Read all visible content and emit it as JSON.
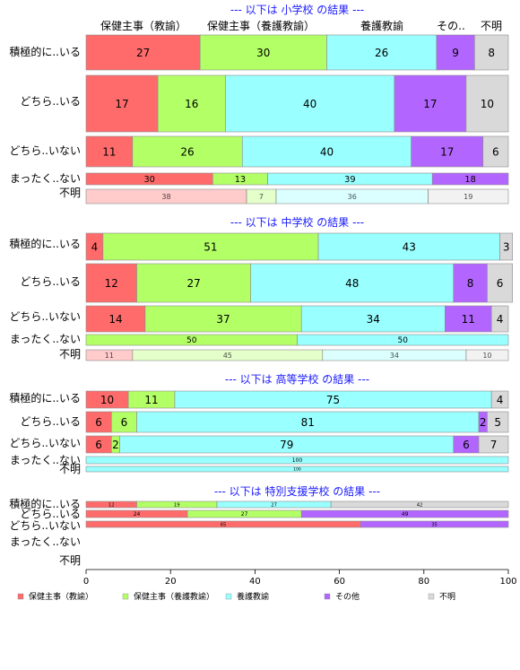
{
  "chart_data": {
    "type": "bar",
    "orientation": "horizontal",
    "stacked": "percent",
    "xlim": [
      0,
      100
    ],
    "xticks": [
      0,
      20,
      40,
      60,
      80,
      100
    ],
    "series_names": [
      "保健主事（教諭）",
      "保健主事（養護教諭）",
      "養護教諭",
      "その他",
      "不明"
    ],
    "colors": [
      "#ff6b6b",
      "#b3ff66",
      "#99ffff",
      "#b366ff",
      "#d9d9d9"
    ],
    "column_headers": [
      "保健主事（教諭）",
      "保健主事（養護教諭）",
      "養護教諭",
      "その..",
      "不明"
    ],
    "panels": [
      {
        "title": "--- 以下は 小学校 の結果 ---",
        "rows": [
          {
            "label": "積極的に..いる",
            "values": [
              27,
              30,
              26,
              9,
              8
            ]
          },
          {
            "label": "どちら..いる",
            "values": [
              17,
              16,
              40,
              17,
              10
            ]
          },
          {
            "label": "どちら..いない",
            "values": [
              11,
              26,
              40,
              17,
              6
            ]
          },
          {
            "label": "まったく..ない",
            "values": [
              30,
              13,
              39,
              18,
              0
            ]
          },
          {
            "label": "不明",
            "values": [
              38,
              7,
              36,
              0,
              19
            ]
          }
        ]
      },
      {
        "title": "--- 以下は 中学校 の結果 ---",
        "rows": [
          {
            "label": "積極的に..いる",
            "values": [
              4,
              51,
              43,
              0,
              3
            ]
          },
          {
            "label": "どちら..いる",
            "values": [
              12,
              27,
              48,
              8,
              6
            ]
          },
          {
            "label": "どちら..いない",
            "values": [
              14,
              37,
              34,
              11,
              4
            ]
          },
          {
            "label": "まったく..ない",
            "values": [
              0,
              50,
              50,
              0,
              0
            ]
          },
          {
            "label": "不明",
            "values": [
              11,
              45,
              34,
              0,
              10
            ]
          }
        ]
      },
      {
        "title": "--- 以下は 高等学校 の結果 ---",
        "rows": [
          {
            "label": "積極的に..いる",
            "values": [
              10,
              11,
              75,
              0,
              4
            ]
          },
          {
            "label": "どちら..いる",
            "values": [
              6,
              6,
              81,
              2,
              5
            ]
          },
          {
            "label": "どちら..いない",
            "values": [
              6,
              2,
              79,
              6,
              7
            ]
          },
          {
            "label": "まったく..ない",
            "values": [
              0,
              0,
              100,
              0,
              0
            ]
          },
          {
            "label": "不明",
            "values": [
              0,
              0,
              100,
              0,
              0
            ]
          }
        ]
      },
      {
        "title": "--- 以下は 特別支援学校 の結果 ---",
        "rows": [
          {
            "label": "積極的に..いる",
            "values": [
              12,
              19,
              27,
              0,
              42
            ]
          },
          {
            "label": "どちら..いる",
            "values": [
              24,
              27,
              0,
              49,
              0
            ]
          },
          {
            "label": "どちら..いない",
            "values": [
              65,
              0,
              0,
              35,
              0
            ]
          },
          {
            "label": "まったく..ない",
            "values": [
              0,
              0,
              0,
              0,
              0
            ]
          },
          {
            "label": "不明",
            "values": [
              0,
              0,
              0,
              0,
              0
            ]
          }
        ]
      }
    ]
  }
}
